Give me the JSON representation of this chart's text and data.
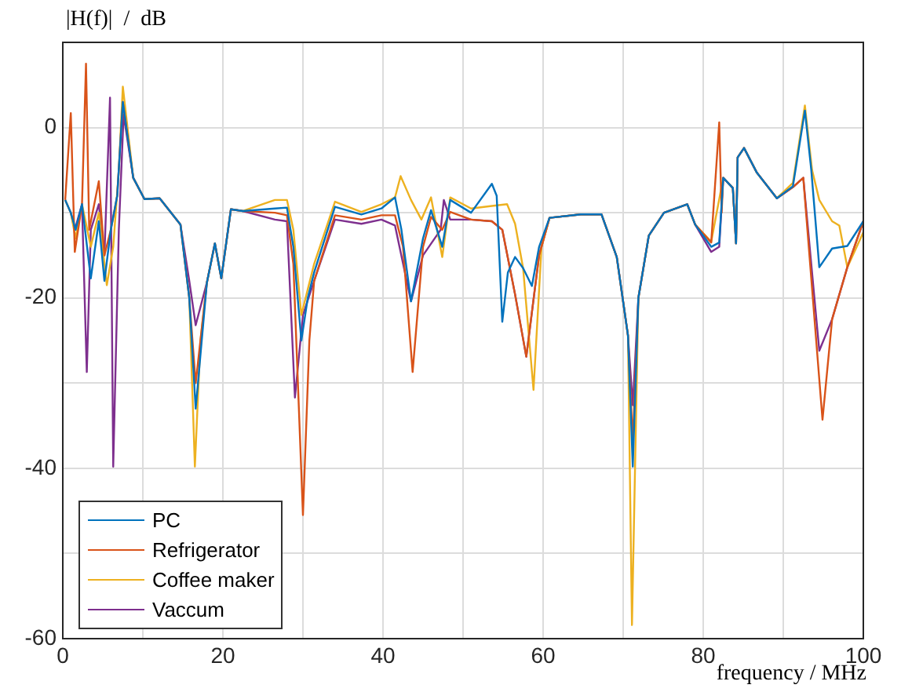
{
  "chart_data": {
    "type": "line",
    "xlabel": "frequency / MHz",
    "ylabel": "|H(f)|  /  dB",
    "xlim": [
      0,
      100
    ],
    "ylim": [
      -60,
      10
    ],
    "xticks": [
      0,
      {
        "value": 10,
        "label": null
      },
      20,
      {
        "value": 30,
        "label": null
      },
      40,
      {
        "value": 50,
        "label": null
      },
      60,
      {
        "value": 70,
        "label": null
      },
      80,
      {
        "value": 90,
        "label": null
      },
      100
    ],
    "yticks": [
      -60,
      {
        "value": -50,
        "label": null
      },
      -40,
      {
        "value": -30,
        "label": null
      },
      -20,
      {
        "value": -10,
        "label": null
      },
      0,
      {
        "value": 10,
        "label": null
      }
    ],
    "grid": true,
    "legend": "bottom left",
    "marker": "none",
    "line_style": "solid",
    "series": [
      {
        "name": "PC",
        "color": "#0072bd",
        "x": [
          0.3,
          1,
          1.6,
          2.4,
          3.5,
          4.5,
          5.2,
          6,
          6.8,
          7.5,
          8.8,
          10.2,
          12.1,
          14.7,
          15.8,
          16.6,
          18,
          19,
          19.8,
          21,
          22.5,
          26.5,
          28,
          28.8,
          29.8,
          30.6,
          31.4,
          34,
          37.3,
          39.8,
          41.5,
          42.3,
          43.5,
          45,
          46,
          47.4,
          48.4,
          51,
          53.6,
          54.2,
          54.9,
          55.6,
          56.5,
          57.5,
          58.6,
          59.5,
          60.8,
          64.7,
          67.3,
          69.2,
          70.6,
          71.2,
          71.9,
          73.2,
          75.1,
          78,
          79,
          81,
          82,
          82.5,
          83.7,
          84.1,
          84.3,
          85.1,
          86.7,
          89.2,
          91.2,
          92.7,
          93.5,
          94.5,
          96.1,
          98,
          100
        ],
        "values": [
          -8.5,
          -10,
          -12,
          -9,
          -17.7,
          -11,
          -18,
          -12,
          -8,
          3,
          -5.9,
          -8.4,
          -8.3,
          -11.4,
          -20,
          -33,
          -18.2,
          -13.6,
          -17.7,
          -9.6,
          -9.8,
          -9.5,
          -9.4,
          -14,
          -25,
          -20,
          -17,
          -9.3,
          -10.2,
          -9.5,
          -8.2,
          -12,
          -20.4,
          -13,
          -9.7,
          -14,
          -8.5,
          -10,
          -6.6,
          -8,
          -22.8,
          -17,
          -15.2,
          -16.5,
          -18.6,
          -14,
          -10.6,
          -10.2,
          -10.2,
          -15.2,
          -24.4,
          -39.8,
          -20,
          -12.7,
          -10,
          -9,
          -11.4,
          -14,
          -13.5,
          -5.9,
          -7.1,
          -13.6,
          -3.5,
          -2.4,
          -5.3,
          -8.3,
          -6.9,
          2,
          -5,
          -16.4,
          -14.2,
          -13.9,
          -11
        ]
      },
      {
        "name": "Refrigerator",
        "color": "#d95319",
        "x": [
          0.3,
          1,
          1.5,
          2.4,
          2.9,
          3.3,
          4.5,
          5.2,
          6,
          6.8,
          7.5,
          8.8,
          10.2,
          12.1,
          14.7,
          15.8,
          16.6,
          18,
          19,
          19.8,
          21,
          22.5,
          26.5,
          28,
          28.8,
          30,
          30.8,
          31.4,
          34,
          37.3,
          39.8,
          41.5,
          42.5,
          43.7,
          45,
          46,
          47.4,
          48.4,
          51,
          53.6,
          54.9,
          56.5,
          57.9,
          59.5,
          60.8,
          64.7,
          67.3,
          69.2,
          70.6,
          71.2,
          71.9,
          73.2,
          75.1,
          78,
          79,
          81,
          82,
          82.3,
          82.5,
          83.7,
          84.1,
          84.3,
          85.1,
          86.7,
          89.2,
          91.2,
          92.5,
          94.9,
          96.1,
          98,
          100
        ],
        "values": [
          -8.5,
          1.7,
          -14.6,
          -9,
          7.5,
          -12,
          -6.3,
          -15,
          -12,
          -8,
          3,
          -5.9,
          -8.4,
          -8.3,
          -11.4,
          -20,
          -30,
          -18.2,
          -13.6,
          -17.7,
          -9.6,
          -9.8,
          -10,
          -10.3,
          -16,
          -45.5,
          -25,
          -18,
          -10.3,
          -10.8,
          -10.3,
          -10.3,
          -14,
          -28.7,
          -14,
          -10.5,
          -12,
          -9.9,
          -10.8,
          -11,
          -12,
          -19.6,
          -26.9,
          -15,
          -10.6,
          -10.2,
          -10.2,
          -15.2,
          -24.4,
          -37,
          -20,
          -12.7,
          -10,
          -9,
          -11.4,
          -13.5,
          0.6,
          -10,
          -5.9,
          -7.1,
          -13.6,
          -3.5,
          -2.4,
          -5.3,
          -8.3,
          -7,
          -5.9,
          -34.3,
          -22.5,
          -16.4,
          -11
        ]
      },
      {
        "name": "Coffee maker",
        "color": "#edb120",
        "x": [
          0.3,
          1,
          1.6,
          2.4,
          3.5,
          4.5,
          5.5,
          6.3,
          7,
          7.5,
          8.8,
          10.2,
          12.1,
          14.7,
          15.8,
          16.5,
          17.2,
          18,
          19,
          19.8,
          21,
          22.5,
          26.5,
          28,
          28.8,
          29.8,
          30.6,
          31.4,
          34,
          37.3,
          39.8,
          41.5,
          42.2,
          43.5,
          44.8,
          46,
          47.4,
          48.4,
          51,
          53.6,
          55.5,
          56.5,
          57.5,
          58.8,
          59.8,
          60.8,
          64.7,
          67.3,
          69.2,
          70.6,
          71.1,
          71.9,
          73.2,
          75.1,
          78,
          79,
          81,
          82.5,
          83.7,
          84.1,
          84.3,
          85.1,
          86.7,
          89.2,
          91.2,
          92.7,
          93.6,
          94.5,
          96.1,
          97,
          98,
          100
        ],
        "values": [
          -8.5,
          -10,
          -13,
          -9,
          -14,
          -10,
          -18.5,
          -14,
          -5,
          4.8,
          -5.9,
          -8.4,
          -8.3,
          -11.4,
          -20,
          -39.8,
          -25,
          -18.2,
          -13.6,
          -17.7,
          -9.6,
          -9.8,
          -8.5,
          -8.5,
          -12,
          -22,
          -19,
          -16,
          -8.7,
          -9.9,
          -9,
          -8.2,
          -5.7,
          -8.5,
          -10.8,
          -8.2,
          -15.2,
          -8.2,
          -9.5,
          -9.2,
          -9,
          -11.3,
          -16.5,
          -30.8,
          -14,
          -10.6,
          -10.2,
          -10.2,
          -15.2,
          -24.4,
          -58.4,
          -20,
          -12.7,
          -10,
          -9,
          -11.4,
          -13.4,
          -5.9,
          -7.1,
          -13.6,
          -3.5,
          -2.4,
          -5.3,
          -8.3,
          -6.5,
          2.6,
          -5,
          -8.5,
          -11,
          -11.5,
          -16.4,
          -12.3
        ]
      },
      {
        "name": "Vaccum",
        "color": "#7e2f8e",
        "x": [
          0.3,
          1,
          1.5,
          2.4,
          3,
          3.5,
          4.5,
          5.2,
          5.9,
          6.3,
          7,
          7.6,
          8.8,
          10.2,
          12.1,
          14.7,
          15.8,
          16.6,
          18,
          19,
          19.8,
          21,
          22.5,
          26.5,
          28,
          29,
          30,
          31.4,
          34,
          37.3,
          39.8,
          41.5,
          43.5,
          45,
          47.2,
          47.6,
          48.4,
          51,
          53.6,
          54.9,
          56.5,
          57.9,
          59.5,
          60.8,
          64.7,
          67.3,
          69.2,
          70.6,
          71.2,
          71.9,
          73.2,
          75.1,
          78,
          79,
          81,
          82,
          82.5,
          83.7,
          84.1,
          84.3,
          85.1,
          86.7,
          89.2,
          91.2,
          92.5,
          94.5,
          96.1,
          98,
          100
        ],
        "values": [
          -8.5,
          -10,
          -12,
          -9,
          -28.7,
          -12,
          -9,
          -15,
          3.5,
          -39.8,
          -12,
          1.5,
          -5.9,
          -8.4,
          -8.3,
          -11.4,
          -18,
          -23.2,
          -18.2,
          -13.6,
          -17.7,
          -9.6,
          -9.8,
          -10.8,
          -11,
          -31.7,
          -22,
          -18,
          -10.8,
          -11.3,
          -10.8,
          -11.5,
          -20.4,
          -15,
          -12,
          -8.5,
          -10.8,
          -10.8,
          -11,
          -12,
          -19.6,
          -26.9,
          -15,
          -10.6,
          -10.2,
          -10.2,
          -15.2,
          -24.4,
          -32.6,
          -20,
          -12.7,
          -10,
          -9,
          -11.4,
          -14.6,
          -14,
          -5.9,
          -7.1,
          -13.6,
          -3.5,
          -2.4,
          -5.3,
          -8.3,
          -7,
          -5.9,
          -26.2,
          -22.5,
          -16.4,
          -11
        ]
      }
    ]
  }
}
